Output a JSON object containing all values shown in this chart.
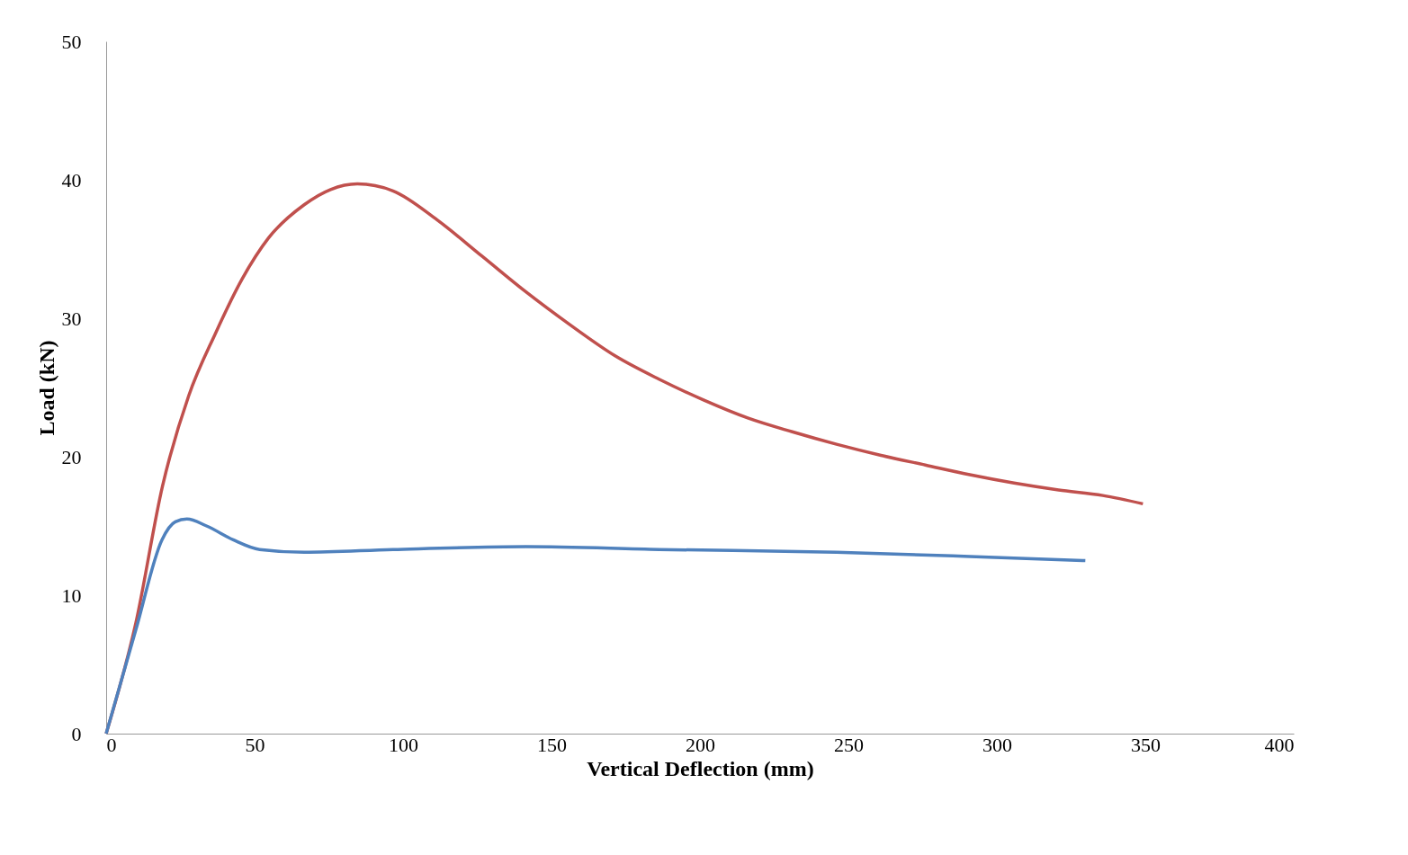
{
  "chart_data": {
    "type": "line",
    "xlabel": "Vertical Deflection (mm)",
    "ylabel": "Load (kN)",
    "xlim": [
      0,
      400
    ],
    "xticks": [
      0,
      50,
      100,
      150,
      200,
      250,
      300,
      350,
      400
    ],
    "ylim": [
      0,
      50
    ],
    "yticks": [
      0,
      10,
      20,
      30,
      40,
      50
    ],
    "grid": false,
    "marker": "none",
    "line_style": "solid",
    "series": [
      {
        "color": "#c0504d",
        "x": [
          0,
          10,
          19,
          27.8,
          36.8,
          45.7,
          54.7,
          66.7,
          75.6,
          84.6,
          96.6,
          111.5,
          126.5,
          141.4,
          156.4,
          171.3,
          186.2,
          201.2,
          216.1,
          231.1,
          246,
          261,
          275.9,
          290.9,
          305.8,
          320.8,
          335.7,
          349.2
        ],
        "values": [
          0,
          8,
          17.9,
          24.4,
          28.9,
          32.8,
          35.8,
          38.2,
          39.3,
          39.7,
          39.2,
          37.1,
          34.5,
          31.9,
          29.5,
          27.3,
          25.6,
          24.1,
          22.8,
          21.8,
          20.9,
          20.1,
          19.4,
          18.7,
          18.1,
          17.6,
          17.2,
          16.6
        ]
      },
      {
        "color": "#4f81bd",
        "x": [
          0,
          10,
          18.8,
          23.3,
          27.2,
          33.8,
          42.8,
          51.7,
          66.7,
          96.6,
          141.4,
          186.2,
          246,
          290.9,
          329.8
        ],
        "values": [
          0,
          7.5,
          14.0,
          15.3,
          15.5,
          15.0,
          14.0,
          13.3,
          13.1,
          13.3,
          13.5,
          13.3,
          13.1,
          12.8,
          12.5
        ]
      }
    ]
  }
}
